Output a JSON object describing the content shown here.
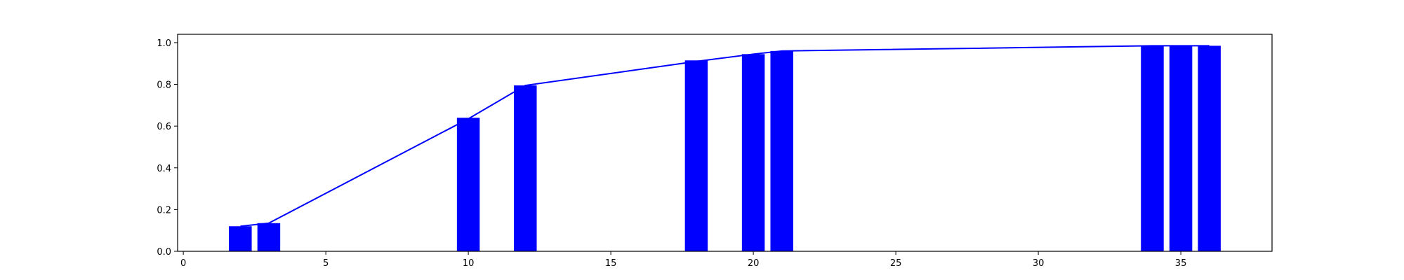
{
  "chart_data": {
    "type": "bar",
    "title": "",
    "xlabel": "",
    "ylabel": "",
    "xlim": [
      -0.2,
      38.2
    ],
    "ylim": [
      0.0,
      1.04
    ],
    "grid": false,
    "x_ticks": [
      0,
      5,
      10,
      15,
      20,
      25,
      30,
      35
    ],
    "y_ticks": [
      0.0,
      0.2,
      0.4,
      0.6,
      0.8,
      1.0
    ],
    "x_tick_labels": [
      "0",
      "5",
      "10",
      "15",
      "20",
      "25",
      "30",
      "35"
    ],
    "y_tick_labels": [
      "0.0",
      "0.2",
      "0.4",
      "0.6",
      "0.8",
      "1.0"
    ],
    "bar_width": 0.8,
    "colors": {
      "bars": "#0000ff",
      "line": "#0000ff",
      "axes": "#000000"
    },
    "bars": {
      "x": [
        2,
        3,
        10,
        12,
        18,
        20,
        21,
        34,
        35,
        36
      ],
      "values": [
        0.12,
        0.135,
        0.64,
        0.795,
        0.915,
        0.945,
        0.96,
        0.985,
        0.985,
        0.985
      ]
    },
    "line": {
      "x": [
        2,
        3,
        10,
        12,
        18,
        20,
        21,
        34,
        35,
        36
      ],
      "values": [
        0.12,
        0.135,
        0.635,
        0.795,
        0.91,
        0.945,
        0.96,
        0.985,
        0.985,
        0.985
      ]
    }
  }
}
